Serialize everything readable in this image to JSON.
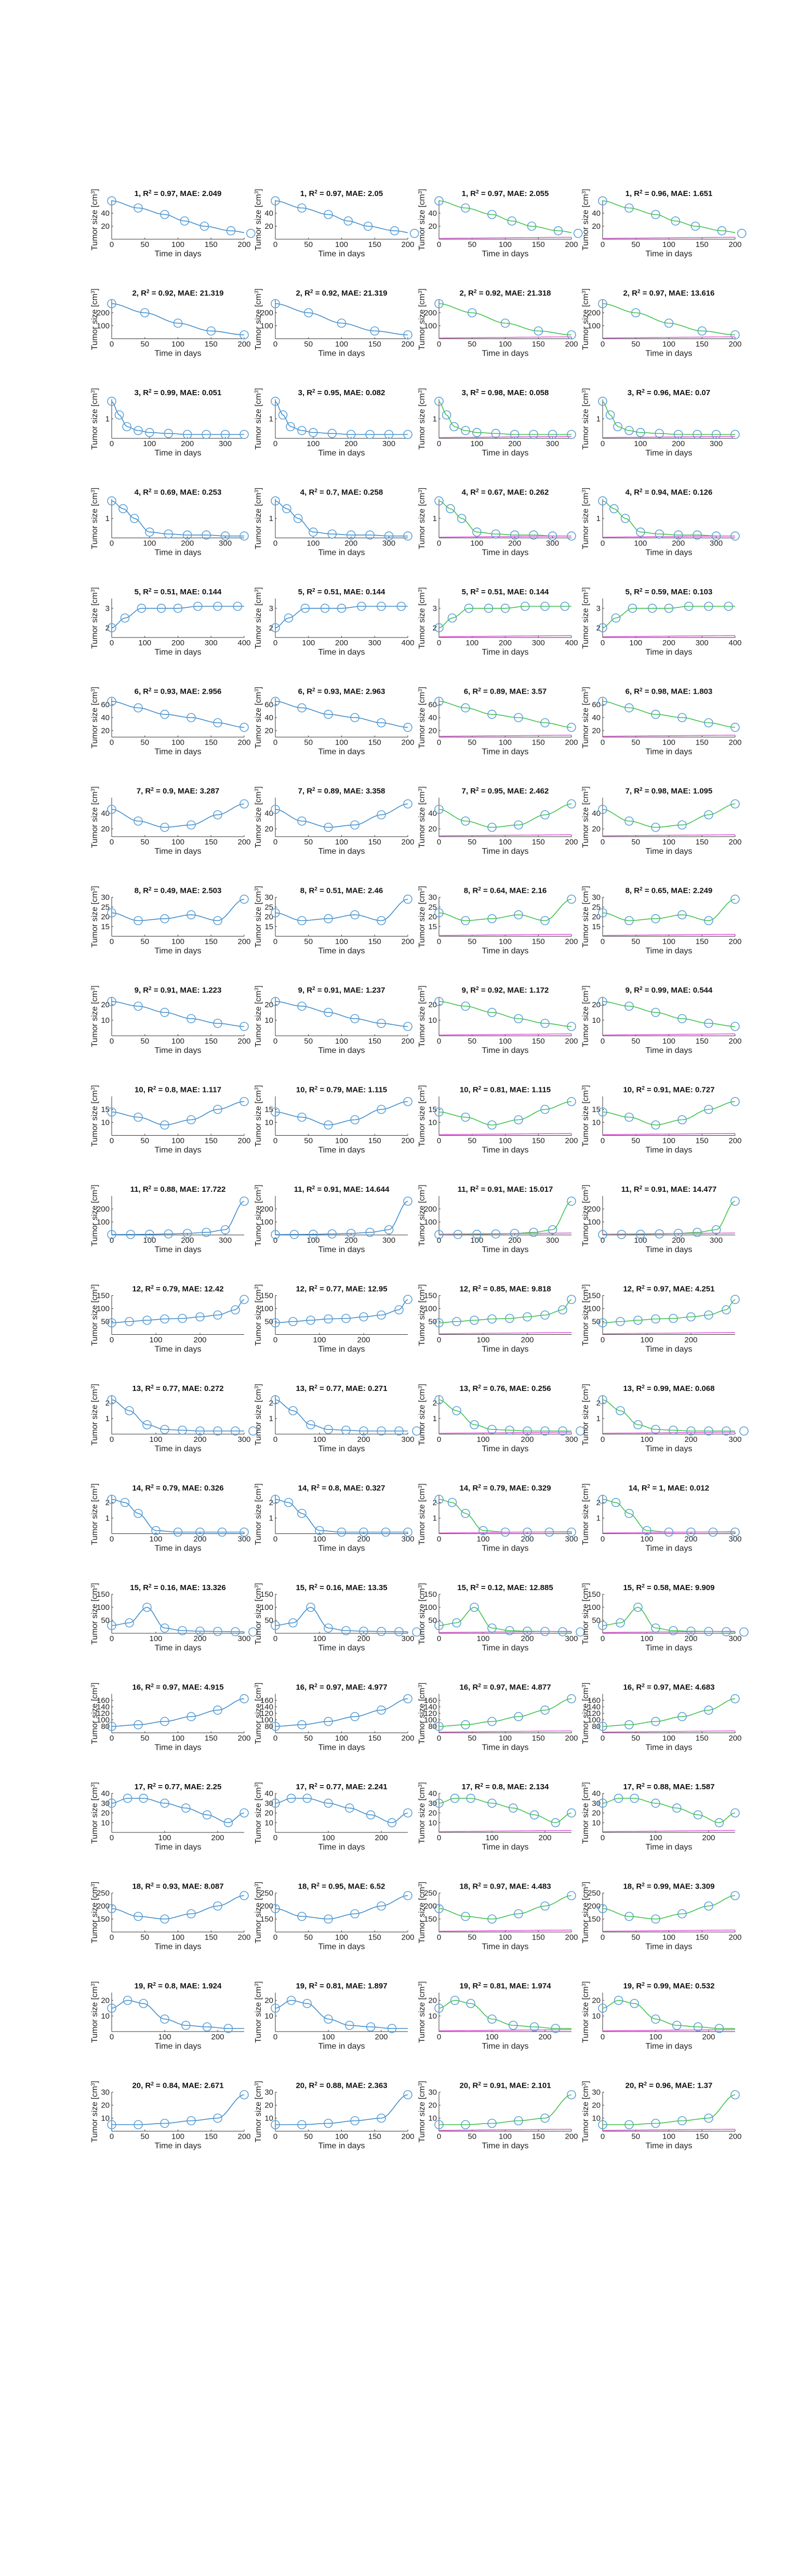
{
  "figure": {
    "xlabel": "Time in days",
    "ylabel_prefix": "Tumor size [cm",
    "ylabel_suffix": "]",
    "ylabel_exp": "3",
    "colors": {
      "data": "#5aa0d6",
      "fit": "#3f8ccc",
      "green": "#3ec24a",
      "magenta": "#e05bd8",
      "blue": "#3e50d6"
    }
  },
  "chart_data": [
    {
      "type": "scatter",
      "xlim": [
        0,
        200
      ],
      "ylim": [
        0,
        60
      ],
      "xticks": [
        50,
        100,
        150,
        200
      ],
      "yticks": [
        20,
        40
      ],
      "x": [
        0,
        40,
        80,
        110,
        140,
        180,
        210
      ],
      "y": [
        59,
        48,
        38,
        28,
        20,
        13,
        9
      ],
      "panels": [
        {
          "title": "1, R",
          "r2": "0.97",
          "mae": "2.049"
        },
        {
          "title": "1, R",
          "r2": "0.97",
          "mae": "2.05"
        },
        {
          "title": "1, R",
          "r2": "0.97",
          "mae": "2.055"
        },
        {
          "title": "1, R",
          "r2": "0.96",
          "mae": "1.651"
        }
      ]
    },
    {
      "type": "scatter",
      "xlim": [
        0,
        200
      ],
      "ylim": [
        0,
        300
      ],
      "xticks": [
        50,
        100,
        150,
        200
      ],
      "yticks": [
        100,
        200
      ],
      "x": [
        0,
        50,
        100,
        150,
        200
      ],
      "y": [
        270,
        200,
        120,
        60,
        30
      ],
      "panels": [
        {
          "title": "2, R",
          "r2": "0.92",
          "mae": "21.319"
        },
        {
          "title": "2, R",
          "r2": "0.92",
          "mae": "21.319"
        },
        {
          "title": "2, R",
          "r2": "0.92",
          "mae": "21.318"
        },
        {
          "title": "2, R",
          "r2": "0.97",
          "mae": "13.616"
        }
      ]
    },
    {
      "type": "scatter",
      "xlim": [
        0,
        350
      ],
      "ylim": [
        0,
        2
      ],
      "xticks": [
        100,
        200,
        300
      ],
      "yticks": [
        1
      ],
      "x": [
        0,
        20,
        40,
        70,
        100,
        150,
        200,
        250,
        300,
        350
      ],
      "y": [
        1.9,
        1.2,
        0.6,
        0.4,
        0.3,
        0.25,
        0.2,
        0.2,
        0.2,
        0.2
      ],
      "panels": [
        {
          "title": "3, R",
          "r2": "0.99",
          "mae": "0.051"
        },
        {
          "title": "3, R",
          "r2": "0.95",
          "mae": "0.082"
        },
        {
          "title": "3, R",
          "r2": "0.98",
          "mae": "0.058"
        },
        {
          "title": "3, R",
          "r2": "0.96",
          "mae": "0.07"
        }
      ]
    },
    {
      "type": "scatter",
      "xlim": [
        0,
        350
      ],
      "ylim": [
        0,
        2
      ],
      "xticks": [
        100,
        200,
        300
      ],
      "yticks": [
        1
      ],
      "x": [
        0,
        30,
        60,
        100,
        150,
        200,
        250,
        300,
        350
      ],
      "y": [
        1.9,
        1.5,
        1.0,
        0.3,
        0.2,
        0.15,
        0.15,
        0.1,
        0.1
      ],
      "panels": [
        {
          "title": "4, R",
          "r2": "0.69",
          "mae": "0.253"
        },
        {
          "title": "4, R",
          "r2": "0.7",
          "mae": "0.258"
        },
        {
          "title": "4, R",
          "r2": "0.67",
          "mae": "0.262"
        },
        {
          "title": "4, R",
          "r2": "0.94",
          "mae": "0.126"
        }
      ]
    },
    {
      "type": "scatter",
      "xlim": [
        0,
        400
      ],
      "ylim": [
        1.5,
        3.5
      ],
      "xticks": [
        100,
        200,
        300,
        400
      ],
      "yticks": [
        2,
        3
      ],
      "x": [
        0,
        40,
        90,
        150,
        200,
        260,
        320,
        380
      ],
      "y": [
        2.0,
        2.5,
        3.0,
        3.0,
        3.0,
        3.1,
        3.1,
        3.1
      ],
      "panels": [
        {
          "title": "5, R",
          "r2": "0.51",
          "mae": "0.144"
        },
        {
          "title": "5, R",
          "r2": "0.51",
          "mae": "0.144"
        },
        {
          "title": "5, R",
          "r2": "0.51",
          "mae": "0.144"
        },
        {
          "title": "5, R",
          "r2": "0.59",
          "mae": "0.103"
        }
      ]
    },
    {
      "type": "scatter",
      "xlim": [
        0,
        200
      ],
      "ylim": [
        10,
        70
      ],
      "xticks": [
        50,
        100,
        150,
        200
      ],
      "yticks": [
        20,
        40,
        60
      ],
      "x": [
        0,
        40,
        80,
        120,
        160,
        200
      ],
      "y": [
        65,
        55,
        45,
        40,
        32,
        25
      ],
      "panels": [
        {
          "title": "6, R",
          "r2": "0.93",
          "mae": "2.956"
        },
        {
          "title": "6, R",
          "r2": "0.93",
          "mae": "2.963"
        },
        {
          "title": "6, R",
          "r2": "0.89",
          "mae": "3.57"
        },
        {
          "title": "6, R",
          "r2": "0.98",
          "mae": "1.803"
        }
      ]
    },
    {
      "type": "scatter",
      "xlim": [
        0,
        200
      ],
      "ylim": [
        10,
        60
      ],
      "xticks": [
        50,
        100,
        150,
        200
      ],
      "yticks": [
        20,
        40
      ],
      "x": [
        0,
        40,
        80,
        120,
        160,
        200
      ],
      "y": [
        45,
        30,
        22,
        25,
        38,
        52
      ],
      "panels": [
        {
          "title": "7, R",
          "r2": "0.9",
          "mae": "3.287"
        },
        {
          "title": "7, R",
          "r2": "0.89",
          "mae": "3.358"
        },
        {
          "title": "7, R",
          "r2": "0.95",
          "mae": "2.462"
        },
        {
          "title": "7, R",
          "r2": "0.98",
          "mae": "1.095"
        }
      ]
    },
    {
      "type": "scatter",
      "xlim": [
        0,
        200
      ],
      "ylim": [
        10,
        30
      ],
      "xticks": [
        50,
        100,
        150,
        200
      ],
      "yticks": [
        15,
        20,
        25,
        30
      ],
      "x": [
        0,
        40,
        80,
        120,
        160,
        200
      ],
      "y": [
        22,
        18,
        19,
        21,
        18,
        29
      ],
      "panels": [
        {
          "title": "8, R",
          "r2": "0.49",
          "mae": "2.503"
        },
        {
          "title": "8, R",
          "r2": "0.51",
          "mae": "2.46"
        },
        {
          "title": "8, R",
          "r2": "0.64",
          "mae": "2.16"
        },
        {
          "title": "8, R",
          "r2": "0.65",
          "mae": "2.249"
        }
      ]
    },
    {
      "type": "scatter",
      "xlim": [
        0,
        200
      ],
      "ylim": [
        0,
        25
      ],
      "xticks": [
        50,
        100,
        150,
        200
      ],
      "yticks": [
        10,
        20
      ],
      "x": [
        0,
        40,
        80,
        120,
        160,
        200
      ],
      "y": [
        22,
        19,
        15,
        11,
        8,
        6
      ],
      "panels": [
        {
          "title": "9, R",
          "r2": "0.91",
          "mae": "1.223"
        },
        {
          "title": "9, R",
          "r2": "0.91",
          "mae": "1.237"
        },
        {
          "title": "9, R",
          "r2": "0.92",
          "mae": "1.172"
        },
        {
          "title": "9, R",
          "r2": "0.99",
          "mae": "0.544"
        }
      ]
    },
    {
      "type": "scatter",
      "xlim": [
        0,
        200
      ],
      "ylim": [
        5,
        20
      ],
      "xticks": [
        50,
        100,
        150,
        200
      ],
      "yticks": [
        10,
        15
      ],
      "x": [
        0,
        40,
        80,
        120,
        160,
        200
      ],
      "y": [
        14,
        12,
        9,
        11,
        15,
        18
      ],
      "panels": [
        {
          "title": "10, R",
          "r2": "0.8",
          "mae": "1.117"
        },
        {
          "title": "10, R",
          "r2": "0.79",
          "mae": "1.115"
        },
        {
          "title": "10, R",
          "r2": "0.81",
          "mae": "1.115"
        },
        {
          "title": "10, R",
          "r2": "0.91",
          "mae": "0.727"
        }
      ]
    },
    {
      "type": "scatter",
      "xlim": [
        0,
        350
      ],
      "ylim": [
        0,
        300
      ],
      "xticks": [
        100,
        200,
        300
      ],
      "yticks": [
        100,
        200
      ],
      "x": [
        0,
        50,
        100,
        150,
        200,
        250,
        300,
        350
      ],
      "y": [
        3,
        4,
        5,
        8,
        12,
        20,
        40,
        260
      ],
      "panels": [
        {
          "title": "11, R",
          "r2": "0.88",
          "mae": "17.722"
        },
        {
          "title": "11, R",
          "r2": "0.91",
          "mae": "14.644"
        },
        {
          "title": "11, R",
          "r2": "0.91",
          "mae": "15.017"
        },
        {
          "title": "11, R",
          "r2": "0.91",
          "mae": "14.477"
        }
      ]
    },
    {
      "type": "scatter",
      "xlim": [
        0,
        300
      ],
      "ylim": [
        0,
        150
      ],
      "xticks": [
        100,
        200
      ],
      "yticks": [
        50,
        100,
        150
      ],
      "x": [
        0,
        40,
        80,
        120,
        160,
        200,
        240,
        280,
        300
      ],
      "y": [
        45,
        50,
        55,
        60,
        62,
        68,
        75,
        95,
        135
      ],
      "panels": [
        {
          "title": "12, R",
          "r2": "0.79",
          "mae": "12.42"
        },
        {
          "title": "12, R",
          "r2": "0.77",
          "mae": "12.95"
        },
        {
          "title": "12, R",
          "r2": "0.85",
          "mae": "9.818"
        },
        {
          "title": "12, R",
          "r2": "0.97",
          "mae": "4.251"
        }
      ]
    },
    {
      "type": "scatter",
      "xlim": [
        0,
        300
      ],
      "ylim": [
        0,
        2.5
      ],
      "xticks": [
        100,
        200,
        300
      ],
      "yticks": [
        1,
        2
      ],
      "x": [
        0,
        40,
        80,
        120,
        160,
        200,
        240,
        280,
        320
      ],
      "y": [
        2.2,
        1.5,
        0.6,
        0.3,
        0.25,
        0.2,
        0.2,
        0.2,
        0.2
      ],
      "panels": [
        {
          "title": "13, R",
          "r2": "0.77",
          "mae": "0.272"
        },
        {
          "title": "13, R",
          "r2": "0.77",
          "mae": "0.271"
        },
        {
          "title": "13, R",
          "r2": "0.76",
          "mae": "0.256"
        },
        {
          "title": "13, R",
          "r2": "0.99",
          "mae": "0.068"
        }
      ]
    },
    {
      "type": "scatter",
      "xlim": [
        0,
        300
      ],
      "ylim": [
        0,
        2.5
      ],
      "xticks": [
        100,
        200,
        300
      ],
      "yticks": [
        1,
        2
      ],
      "x": [
        0,
        30,
        60,
        100,
        150,
        200,
        250,
        300
      ],
      "y": [
        2.2,
        2.0,
        1.3,
        0.2,
        0.1,
        0.1,
        0.1,
        0.1
      ],
      "panels": [
        {
          "title": "14, R",
          "r2": "0.79",
          "mae": "0.326"
        },
        {
          "title": "14, R",
          "r2": "0.8",
          "mae": "0.327"
        },
        {
          "title": "14, R",
          "r2": "0.79",
          "mae": "0.329"
        },
        {
          "title": "14, R",
          "r2": "1",
          "mae": "0.012"
        }
      ]
    },
    {
      "type": "scatter",
      "xlim": [
        0,
        300
      ],
      "ylim": [
        0,
        150
      ],
      "xticks": [
        100,
        200,
        300
      ],
      "yticks": [
        50,
        100,
        150
      ],
      "x": [
        0,
        40,
        80,
        120,
        160,
        200,
        240,
        280,
        320
      ],
      "y": [
        30,
        40,
        100,
        20,
        10,
        8,
        7,
        6,
        5
      ],
      "panels": [
        {
          "title": "15, R",
          "r2": "0.16",
          "mae": "13.326"
        },
        {
          "title": "15, R",
          "r2": "0.16",
          "mae": "13.35"
        },
        {
          "title": "15, R",
          "r2": "0.12",
          "mae": "12.885"
        },
        {
          "title": "15, R",
          "r2": "0.58",
          "mae": "9.909"
        }
      ]
    },
    {
      "type": "scatter",
      "xlim": [
        0,
        200
      ],
      "ylim": [
        60,
        180
      ],
      "xticks": [
        50,
        100,
        150,
        200
      ],
      "yticks": [
        80,
        100,
        120,
        140,
        160
      ],
      "x": [
        0,
        40,
        80,
        120,
        160,
        200
      ],
      "y": [
        80,
        85,
        95,
        110,
        130,
        165
      ],
      "panels": [
        {
          "title": "16, R",
          "r2": "0.97",
          "mae": "4.915"
        },
        {
          "title": "16, R",
          "r2": "0.97",
          "mae": "4.977"
        },
        {
          "title": "16, R",
          "r2": "0.97",
          "mae": "4.877"
        },
        {
          "title": "16, R",
          "r2": "0.97",
          "mae": "4.683"
        }
      ]
    },
    {
      "type": "scatter",
      "xlim": [
        0,
        250
      ],
      "ylim": [
        0,
        40
      ],
      "xticks": [
        100,
        200
      ],
      "yticks": [
        10,
        20,
        30,
        40
      ],
      "x": [
        0,
        30,
        60,
        100,
        140,
        180,
        220,
        250
      ],
      "y": [
        30,
        35,
        35,
        30,
        25,
        18,
        10,
        20
      ],
      "panels": [
        {
          "title": "17, R",
          "r2": "0.77",
          "mae": "2.25"
        },
        {
          "title": "17, R",
          "r2": "0.77",
          "mae": "2.241"
        },
        {
          "title": "17, R",
          "r2": "0.8",
          "mae": "2.134"
        },
        {
          "title": "17, R",
          "r2": "0.88",
          "mae": "1.587"
        }
      ]
    },
    {
      "type": "scatter",
      "xlim": [
        0,
        200
      ],
      "ylim": [
        100,
        250
      ],
      "xticks": [
        50,
        100,
        150,
        200
      ],
      "yticks": [
        150,
        200,
        250
      ],
      "x": [
        0,
        40,
        80,
        120,
        160,
        200
      ],
      "y": [
        190,
        160,
        150,
        170,
        200,
        240
      ],
      "panels": [
        {
          "title": "18, R",
          "r2": "0.93",
          "mae": "8.087"
        },
        {
          "title": "18, R",
          "r2": "0.95",
          "mae": "6.52"
        },
        {
          "title": "18, R",
          "r2": "0.97",
          "mae": "4.483"
        },
        {
          "title": "18, R",
          "r2": "0.99",
          "mae": "3.309"
        }
      ]
    },
    {
      "type": "scatter",
      "xlim": [
        0,
        250
      ],
      "ylim": [
        0,
        25
      ],
      "xticks": [
        100,
        200
      ],
      "yticks": [
        10,
        20
      ],
      "x": [
        0,
        30,
        60,
        100,
        140,
        180,
        220
      ],
      "y": [
        15,
        20,
        18,
        8,
        4,
        3,
        2
      ],
      "panels": [
        {
          "title": "19, R",
          "r2": "0.8",
          "mae": "1.924"
        },
        {
          "title": "19, R",
          "r2": "0.81",
          "mae": "1.897"
        },
        {
          "title": "19, R",
          "r2": "0.81",
          "mae": "1.974"
        },
        {
          "title": "19, R",
          "r2": "0.99",
          "mae": "0.532"
        }
      ]
    },
    {
      "type": "scatter",
      "xlim": [
        0,
        200
      ],
      "ylim": [
        0,
        30
      ],
      "xticks": [
        50,
        100,
        150,
        200
      ],
      "yticks": [
        10,
        20,
        30
      ],
      "x": [
        0,
        40,
        80,
        120,
        160,
        200
      ],
      "y": [
        5,
        5,
        6,
        8,
        10,
        28
      ],
      "panels": [
        {
          "title": "20, R",
          "r2": "0.84",
          "mae": "2.671"
        },
        {
          "title": "20, R",
          "r2": "0.88",
          "mae": "2.363"
        },
        {
          "title": "20, R",
          "r2": "0.91",
          "mae": "2.101"
        },
        {
          "title": "20, R",
          "r2": "0.96",
          "mae": "1.37"
        }
      ]
    }
  ]
}
